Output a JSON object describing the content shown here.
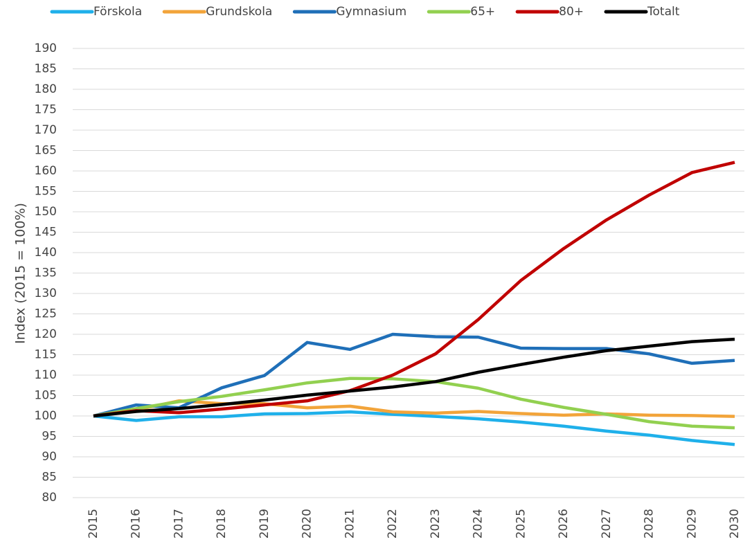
{
  "chart_data": {
    "type": "line",
    "y_label": "Index (2015 = 100%)",
    "categories": [
      "2015",
      "2016",
      "2017",
      "2018",
      "2019",
      "2020",
      "2021",
      "2022",
      "2023",
      "2024",
      "2025",
      "2026",
      "2027",
      "2028",
      "2029",
      "2030"
    ],
    "series": [
      {
        "name": "Förskola",
        "color": "#1fb0ea",
        "values": [
          100,
          98.9,
          99.8,
          99.8,
          100.5,
          100.6,
          101,
          100.4,
          99.9,
          99.3,
          98.5,
          97.5,
          96.3,
          95.3,
          94,
          93
        ]
      },
      {
        "name": "Grundskola",
        "color": "#f2a43a",
        "values": [
          100,
          101.5,
          103.7,
          103,
          103,
          102,
          102.4,
          101,
          100.7,
          101.1,
          100.6,
          100.2,
          100.5,
          100.2,
          100.1,
          99.9
        ]
      },
      {
        "name": "Gymnasium",
        "color": "#1f6fb8",
        "values": [
          100,
          102.7,
          102,
          106.9,
          109.9,
          118,
          116.3,
          120,
          119.4,
          119.3,
          116.6,
          116.5,
          116.5,
          115.2,
          112.9,
          113.6
        ]
      },
      {
        "name": "65+",
        "color": "#92d050",
        "values": [
          100,
          101.8,
          103.5,
          104.8,
          106.4,
          108.1,
          109.2,
          109.1,
          108.4,
          106.8,
          104.1,
          102.1,
          100.4,
          98.6,
          97.5,
          97.1
        ]
      },
      {
        "name": "80+",
        "color": "#c00000",
        "values": [
          100,
          101.3,
          100.8,
          101.7,
          102.7,
          103.7,
          106.2,
          110,
          115.2,
          123.6,
          133.2,
          141,
          148,
          154.1,
          159.6,
          162.1
        ]
      },
      {
        "name": "Totalt",
        "color": "#000000",
        "values": [
          100,
          101.1,
          101.8,
          102.8,
          103.9,
          105.1,
          106.1,
          107.1,
          108.4,
          110.7,
          112.6,
          114.4,
          116,
          117.1,
          118.2,
          118.8
        ]
      }
    ],
    "ylim": [
      80,
      190
    ],
    "yticks": [
      80,
      85,
      90,
      95,
      100,
      105,
      110,
      115,
      120,
      125,
      130,
      135,
      140,
      145,
      150,
      155,
      160,
      165,
      170,
      175,
      180,
      185,
      190
    ],
    "grid": true,
    "legend": "top"
  }
}
